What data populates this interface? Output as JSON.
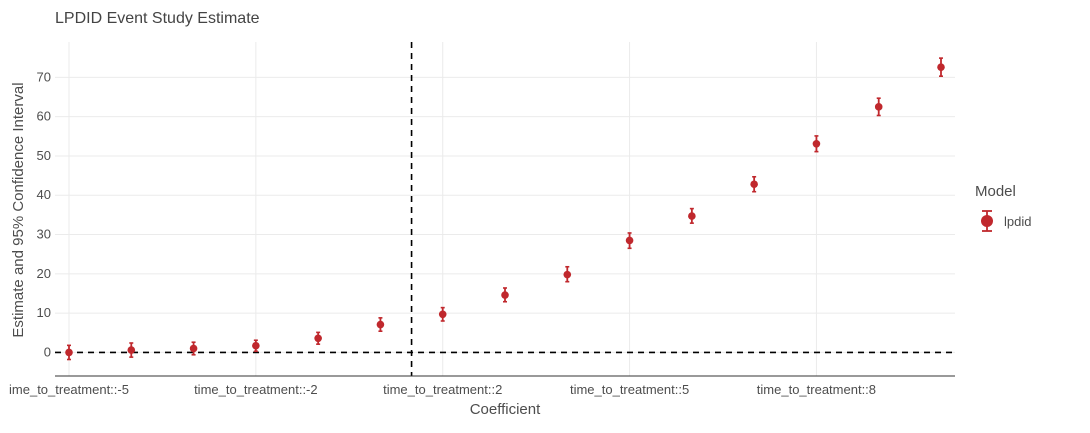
{
  "chart_data": {
    "type": "scatter",
    "title": "LPDID Event Study Estimate",
    "xlabel": "Coefficient",
    "ylabel": "Estimate and 95% Confidence Interval",
    "x_tick_labels": [
      "ime_to_treatment::-5",
      "time_to_treatment::-2",
      "time_to_treatment::2",
      "time_to_treatment::5",
      "time_to_treatment::8"
    ],
    "y_ticks": [
      0,
      10,
      20,
      30,
      40,
      50,
      60,
      70
    ],
    "ylim": [
      -6,
      79
    ],
    "grid": true,
    "reference_lines": {
      "horizontal_y": 0,
      "vertical_between": [
        "time_to_treatment::1",
        "time_to_treatment::2"
      ]
    },
    "legend": {
      "title": "Model",
      "position": "right"
    },
    "series": [
      {
        "name": "lpdid",
        "color": "#c0282d",
        "points": [
          {
            "x": "time_to_treatment::-5",
            "y": 0.0,
            "low": -1.8,
            "high": 1.8
          },
          {
            "x": "time_to_treatment::-4",
            "y": 0.6,
            "low": -1.2,
            "high": 2.4
          },
          {
            "x": "time_to_treatment::-3",
            "y": 1.0,
            "low": -0.6,
            "high": 2.6
          },
          {
            "x": "time_to_treatment::-2",
            "y": 1.7,
            "low": 0.3,
            "high": 3.1
          },
          {
            "x": "time_to_treatment::-1",
            "y": 3.6,
            "low": 2.1,
            "high": 5.1
          },
          {
            "x": "time_to_treatment::1",
            "y": 7.1,
            "low": 5.4,
            "high": 8.8
          },
          {
            "x": "time_to_treatment::2",
            "y": 9.7,
            "low": 8.0,
            "high": 11.4
          },
          {
            "x": "time_to_treatment::3",
            "y": 14.6,
            "low": 12.9,
            "high": 16.4
          },
          {
            "x": "time_to_treatment::4",
            "y": 19.8,
            "low": 18.0,
            "high": 21.8
          },
          {
            "x": "time_to_treatment::5",
            "y": 28.5,
            "low": 26.5,
            "high": 30.4
          },
          {
            "x": "time_to_treatment::6",
            "y": 34.7,
            "low": 32.9,
            "high": 36.6
          },
          {
            "x": "time_to_treatment::7",
            "y": 42.8,
            "low": 40.9,
            "high": 44.7
          },
          {
            "x": "time_to_treatment::8",
            "y": 53.1,
            "low": 51.1,
            "high": 55.1
          },
          {
            "x": "time_to_treatment::9",
            "y": 62.5,
            "low": 60.3,
            "high": 64.7
          },
          {
            "x": "time_to_treatment::10",
            "y": 72.6,
            "low": 70.3,
            "high": 74.9
          }
        ]
      }
    ]
  }
}
